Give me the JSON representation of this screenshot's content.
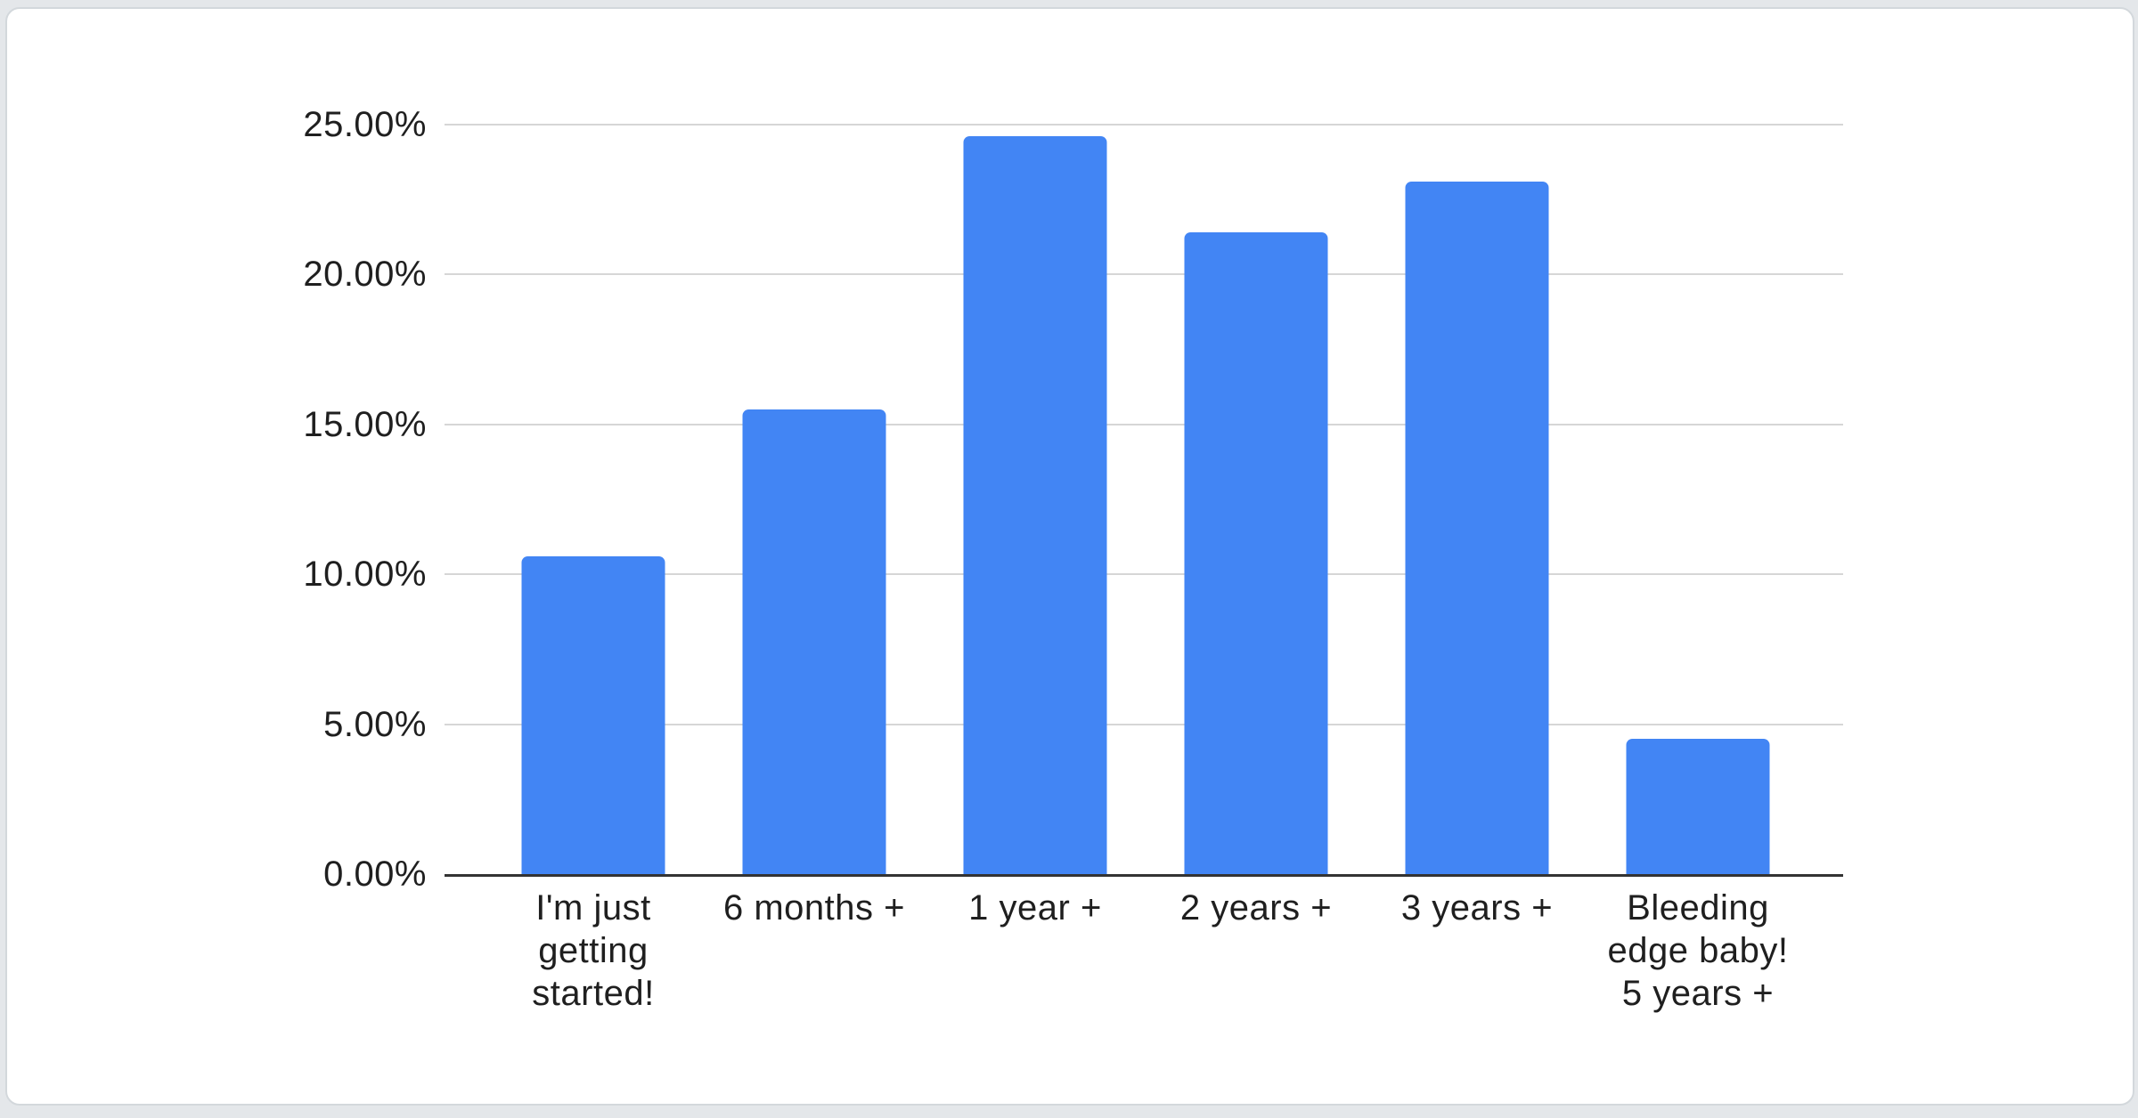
{
  "page": {
    "background": "#e4e7ea"
  },
  "card": {
    "background": "#ffffff",
    "border_color": "#d3d8dc"
  },
  "chart_data": {
    "type": "bar",
    "title": "",
    "xlabel": "",
    "ylabel": "",
    "categories": [
      "I'm just getting started!",
      "6 months +",
      "1 year +",
      "2 years +",
      "3 years +",
      "Bleeding edge baby! 5 years +"
    ],
    "values": [
      10.6,
      15.5,
      24.6,
      21.4,
      23.1,
      4.5
    ],
    "unit": "%",
    "ylim": [
      0,
      25
    ],
    "y_ticks": [
      "0.00%",
      "5.00%",
      "10.00%",
      "15.00%",
      "20.00%",
      "25.00%"
    ],
    "grid": true,
    "legend": "none",
    "bar_color": "#4285f4",
    "gridline_color": "#d6d6d6",
    "baseline_color": "#333333",
    "text_color": "#1f1f1f",
    "tick_label_lines": [
      [
        "I'm just",
        "getting",
        "started!"
      ],
      [
        "6 months +"
      ],
      [
        "1 year +"
      ],
      [
        "2 years +"
      ],
      [
        "3 years +"
      ],
      [
        "Bleeding",
        "edge baby!",
        "5 years +"
      ]
    ]
  }
}
